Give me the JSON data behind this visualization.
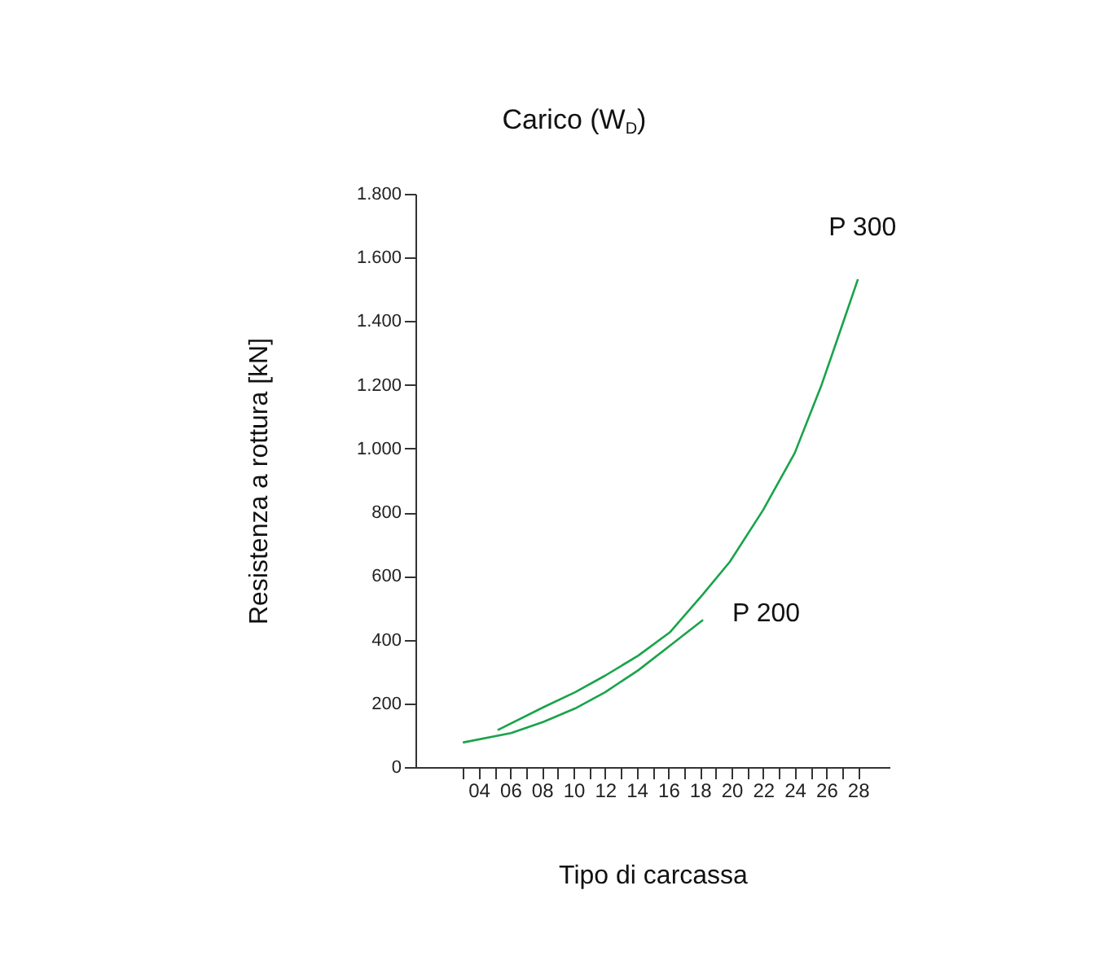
{
  "chart_data": {
    "type": "line",
    "title": "Carico (W$_{D}$)",
    "xlabel": "Tipo di carcassa",
    "ylabel": "Resistenza a rottura [kN]",
    "xlim": [
      0,
      30
    ],
    "xticks": [
      {
        "value": 3,
        "label": null
      },
      {
        "value": 4,
        "label": "04"
      },
      {
        "value": 5,
        "label": null
      },
      {
        "value": 6,
        "label": "06"
      },
      {
        "value": 7,
        "label": null
      },
      {
        "value": 8,
        "label": "08"
      },
      {
        "value": 9,
        "label": null
      },
      10,
      {
        "value": 11,
        "label": null
      },
      12,
      {
        "value": 13,
        "label": null
      },
      14,
      {
        "value": 15,
        "label": null
      },
      16,
      {
        "value": 17,
        "label": null
      },
      18,
      {
        "value": 19,
        "label": null
      },
      20,
      {
        "value": 21,
        "label": null
      },
      22,
      {
        "value": 23,
        "label": null
      },
      24,
      {
        "value": 25,
        "label": null
      },
      26,
      {
        "value": 27,
        "label": null
      },
      28
    ],
    "ylim": [
      0,
      1800
    ],
    "yticks": [
      0,
      200,
      400,
      600,
      800,
      {
        "value": 1000,
        "label": "1.000"
      },
      {
        "value": 1200,
        "label": "1.200"
      },
      {
        "value": 1400,
        "label": "1.400"
      },
      {
        "value": 1600,
        "label": "1.600"
      },
      {
        "value": 1800,
        "label": "1.800"
      }
    ],
    "grid": false,
    "legend": false,
    "marker": "none",
    "line_style": "solid",
    "series": [
      {
        "name": "P 300",
        "color": "#1aa34a",
        "x": [
          5.2,
          8.1,
          10.1,
          12.0,
          14.1,
          16.1,
          18.2,
          19.9,
          22.0,
          24.0,
          25.7,
          27.0,
          28.0
        ],
        "values": [
          116,
          188,
          235,
          287,
          350,
          423,
          543,
          645,
          807,
          986,
          1200,
          1387,
          1532
        ]
      },
      {
        "name": "P 200",
        "color": "#1aa34a",
        "x": [
          3,
          6.05,
          8.1,
          10.1,
          12.0,
          14.1,
          16.1,
          18.2
        ],
        "values": [
          77,
          107,
          142,
          184,
          235,
          304,
          381,
          462
        ]
      }
    ]
  }
}
